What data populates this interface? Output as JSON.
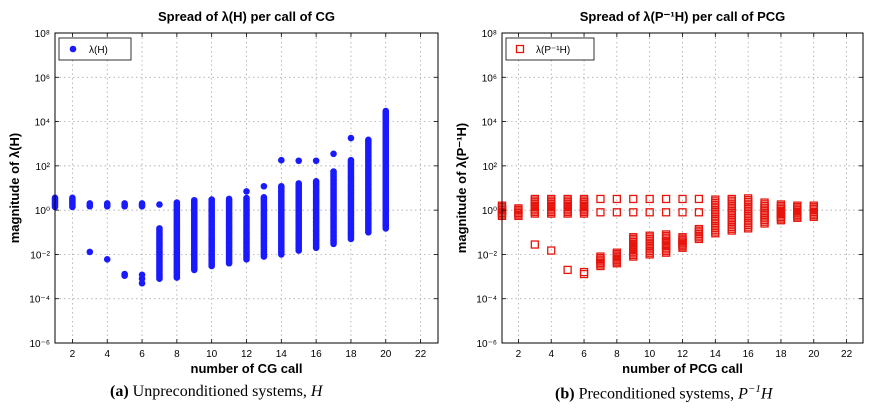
{
  "captions": [
    {
      "tag": "(a)",
      "text": "Unpreconditioned systems, ",
      "math": "H"
    },
    {
      "tag": "(b)",
      "text": "Preconditioned systems, ",
      "math": "P",
      "math_sup": "−1",
      "math_tail": "H"
    }
  ],
  "chart_data": [
    {
      "type": "scatter",
      "title": "Spread of λ(H) per call of CG",
      "xlabel": "number of CG call",
      "ylabel": "magnitude of λ(H)",
      "xlim": [
        1,
        23
      ],
      "ylim": [
        1e-06,
        100000000.0
      ],
      "yscale": "log",
      "xticks": [
        2,
        4,
        6,
        8,
        10,
        12,
        14,
        16,
        18,
        20,
        22
      ],
      "yticks": [
        1e-06,
        0.0001,
        0.01,
        1,
        100,
        10000.0,
        1000000.0,
        100000000.0
      ],
      "ytick_labels": [
        "10⁻⁶",
        "10⁻⁴",
        "10⁻²",
        "10⁰",
        "10²",
        "10⁴",
        "10⁶",
        "10⁸"
      ],
      "grid": true,
      "legend_position": "top-left",
      "series": [
        {
          "name": "λ(H)",
          "marker": "filled-circle",
          "color": "#1a1aff",
          "points": [
            {
              "x": 1,
              "min": 1.4,
              "max": 3.6
            },
            {
              "x": 2,
              "min": 1.4,
              "max": 3.6
            },
            {
              "x": 3,
              "min": 1.5,
              "max": 2.0,
              "extra": [
                0.013
              ]
            },
            {
              "x": 4,
              "min": 1.5,
              "max": 2.0,
              "extra": [
                0.006
              ]
            },
            {
              "x": 5,
              "min": 1.5,
              "max": 2.0,
              "extra": [
                0.0011,
                0.0013
              ]
            },
            {
              "x": 6,
              "min": 1.5,
              "max": 2.0,
              "extra": [
                0.0005,
                0.0008,
                0.0012
              ]
            },
            {
              "x": 7,
              "min": 0.0008,
              "max": 0.15,
              "extra": [
                1.8
              ]
            },
            {
              "x": 8,
              "min": 0.0009,
              "max": 2.2
            },
            {
              "x": 9,
              "min": 0.002,
              "max": 2.8
            },
            {
              "x": 10,
              "min": 0.003,
              "max": 3.0
            },
            {
              "x": 11,
              "min": 0.004,
              "max": 3.2
            },
            {
              "x": 12,
              "min": 0.006,
              "max": 3.5,
              "extra": [
                7
              ]
            },
            {
              "x": 13,
              "min": 0.008,
              "max": 3.8,
              "extra": [
                12
              ]
            },
            {
              "x": 14,
              "min": 0.01,
              "max": 12,
              "extra": [
                180
              ]
            },
            {
              "x": 15,
              "min": 0.015,
              "max": 16,
              "extra": [
                170
              ]
            },
            {
              "x": 16,
              "min": 0.02,
              "max": 20,
              "extra": [
                170
              ]
            },
            {
              "x": 17,
              "min": 0.03,
              "max": 55,
              "extra": [
                350
              ]
            },
            {
              "x": 18,
              "min": 0.05,
              "max": 180,
              "extra": [
                1800
              ]
            },
            {
              "x": 19,
              "min": 0.1,
              "max": 1500
            },
            {
              "x": 20,
              "min": 0.15,
              "max": 30000
            }
          ]
        }
      ]
    },
    {
      "type": "scatter",
      "title": "Spread of λ(P⁻¹H) per call of PCG",
      "xlabel": "number of PCG call",
      "ylabel": "magnitude of λ(P⁻¹H)",
      "xlim": [
        1,
        23
      ],
      "ylim": [
        1e-06,
        100000000.0
      ],
      "yscale": "log",
      "xticks": [
        2,
        4,
        6,
        8,
        10,
        12,
        14,
        16,
        18,
        20,
        22
      ],
      "yticks": [
        1e-06,
        0.0001,
        0.01,
        1,
        100,
        10000.0,
        1000000.0,
        100000000.0
      ],
      "ytick_labels": [
        "10⁻⁶",
        "10⁻⁴",
        "10⁻²",
        "10⁰",
        "10²",
        "10⁴",
        "10⁶",
        "10⁸"
      ],
      "grid": true,
      "legend_position": "top-left",
      "series": [
        {
          "name": "λ(P⁻¹H)",
          "marker": "open-square",
          "color": "#e8140c",
          "points": [
            {
              "x": 1,
              "min": 0.55,
              "max": 1.6
            },
            {
              "x": 2,
              "min": 0.55,
              "max": 1.2
            },
            {
              "x": 3,
              "min": 0.7,
              "max": 3.2,
              "extra": [
                0.028
              ]
            },
            {
              "x": 4,
              "min": 0.7,
              "max": 3.2,
              "extra": [
                0.015
              ]
            },
            {
              "x": 5,
              "min": 0.7,
              "max": 3.2,
              "extra": [
                0.002
              ]
            },
            {
              "x": 6,
              "min": 0.7,
              "max": 3.2,
              "extra": [
                0.0013,
                0.0016
              ]
            },
            {
              "x": 7,
              "min": 0.003,
              "max": 0.008,
              "extra": [
                0.8,
                3.2
              ]
            },
            {
              "x": 8,
              "min": 0.004,
              "max": 0.012,
              "extra": [
                0.8,
                3.2
              ]
            },
            {
              "x": 9,
              "min": 0.008,
              "max": 0.06,
              "extra": [
                0.8,
                3.2
              ]
            },
            {
              "x": 10,
              "min": 0.01,
              "max": 0.07,
              "extra": [
                0.8,
                3.2
              ]
            },
            {
              "x": 11,
              "min": 0.012,
              "max": 0.08,
              "extra": [
                0.8,
                3.2
              ]
            },
            {
              "x": 12,
              "min": 0.02,
              "max": 0.06,
              "extra": [
                0.8,
                3.2
              ]
            },
            {
              "x": 13,
              "min": 0.05,
              "max": 0.14,
              "extra": [
                0.8,
                3.2
              ]
            },
            {
              "x": 14,
              "min": 0.09,
              "max": 3.0
            },
            {
              "x": 15,
              "min": 0.12,
              "max": 3.2
            },
            {
              "x": 16,
              "min": 0.15,
              "max": 3.4
            },
            {
              "x": 17,
              "min": 0.25,
              "max": 2.2
            },
            {
              "x": 18,
              "min": 0.35,
              "max": 1.8
            },
            {
              "x": 19,
              "min": 0.45,
              "max": 1.6
            },
            {
              "x": 20,
              "min": 0.5,
              "max": 1.6
            }
          ]
        }
      ]
    }
  ]
}
